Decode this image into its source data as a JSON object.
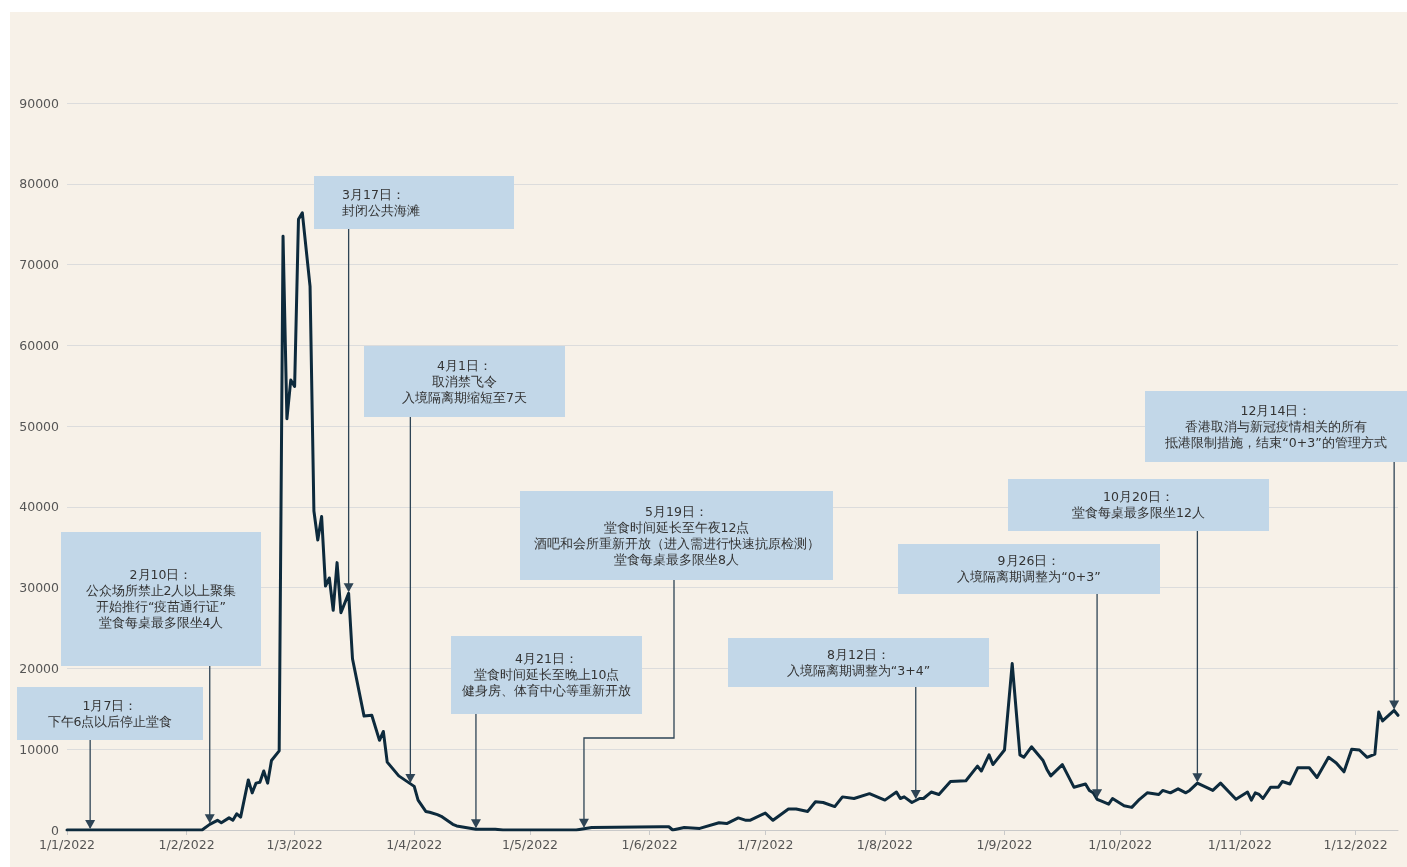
{
  "chart_data": {
    "type": "line",
    "x": [
      "2022-01-01",
      "2022-02-05",
      "2022-02-07",
      "2022-02-09",
      "2022-02-10",
      "2022-02-12",
      "2022-02-13",
      "2022-02-14",
      "2022-02-15",
      "2022-02-17",
      "2022-02-18",
      "2022-02-19",
      "2022-02-20",
      "2022-02-21",
      "2022-02-22",
      "2022-02-23",
      "2022-02-25",
      "2022-02-26",
      "2022-02-27",
      "2022-02-28",
      "2022-03-01",
      "2022-03-02",
      "2022-03-03",
      "2022-03-05",
      "2022-03-06",
      "2022-03-07",
      "2022-03-08",
      "2022-03-09",
      "2022-03-10",
      "2022-03-11",
      "2022-03-12",
      "2022-03-13",
      "2022-03-15",
      "2022-03-16",
      "2022-03-19",
      "2022-03-21",
      "2022-03-23",
      "2022-03-24",
      "2022-03-25",
      "2022-03-28",
      "2022-04-01",
      "2022-04-02",
      "2022-04-04",
      "2022-04-05",
      "2022-04-07",
      "2022-04-08",
      "2022-04-11",
      "2022-04-12",
      "2022-04-17",
      "2022-04-22",
      "2022-04-24",
      "2022-05-03",
      "2022-05-13",
      "2022-05-17",
      "2022-06-04",
      "2022-06-06",
      "2022-06-07",
      "2022-06-10",
      "2022-06-14",
      "2022-06-19",
      "2022-06-21",
      "2022-06-24",
      "2022-06-26",
      "2022-06-27",
      "2022-07-01",
      "2022-07-03",
      "2022-07-07",
      "2022-07-09",
      "2022-07-12",
      "2022-07-14",
      "2022-07-16",
      "2022-07-19",
      "2022-07-21",
      "2022-07-24",
      "2022-07-28",
      "2022-08-01",
      "2022-08-04",
      "2022-08-05",
      "2022-08-06",
      "2022-08-08",
      "2022-08-10",
      "2022-08-11",
      "2022-08-13",
      "2022-08-15",
      "2022-08-18",
      "2022-08-22",
      "2022-08-25",
      "2022-08-26",
      "2022-08-28",
      "2022-08-29",
      "2022-09-01",
      "2022-09-03",
      "2022-09-05",
      "2022-09-06",
      "2022-09-08",
      "2022-09-11",
      "2022-09-12",
      "2022-09-13",
      "2022-09-16",
      "2022-09-19",
      "2022-09-22",
      "2022-09-23",
      "2022-09-24",
      "2022-09-25",
      "2022-09-26",
      "2022-09-28",
      "2022-09-29",
      "2022-10-02",
      "2022-10-04",
      "2022-10-06",
      "2022-10-08",
      "2022-10-11",
      "2022-10-12",
      "2022-10-14",
      "2022-10-16",
      "2022-10-18",
      "2022-10-19",
      "2022-10-21",
      "2022-10-25",
      "2022-10-27",
      "2022-10-31",
      "2022-11-03",
      "2022-11-04",
      "2022-11-05",
      "2022-11-06",
      "2022-11-07",
      "2022-11-09",
      "2022-11-11",
      "2022-11-12",
      "2022-11-14",
      "2022-11-16",
      "2022-11-19",
      "2022-11-21",
      "2022-11-24",
      "2022-11-26",
      "2022-11-28",
      "2022-11-30",
      "2022-12-02",
      "2022-12-04",
      "2022-12-06",
      "2022-12-07",
      "2022-12-08",
      "2022-12-11",
      "2022-12-12"
    ],
    "series": [
      {
        "color": "#0d2a3c",
        "values": [
          0,
          0,
          700,
          1200,
          900,
          1500,
          1200,
          2000,
          1600,
          6200,
          4600,
          5800,
          5900,
          7300,
          5800,
          8600,
          9800,
          73500,
          50900,
          55700,
          54900,
          75600,
          76400,
          67300,
          39500,
          35900,
          38800,
          30200,
          31200,
          27200,
          33100,
          26900,
          29300,
          21200,
          14100,
          14200,
          11100,
          12200,
          8400,
          6700,
          5400,
          3700,
          2300,
          2200,
          1900,
          1700,
          700,
          500,
          100,
          100,
          0,
          0,
          0,
          300,
          400,
          400,
          0,
          300,
          200,
          900,
          800,
          1500,
          1200,
          1200,
          2100,
          1200,
          2600,
          2600,
          2300,
          3500,
          3400,
          2900,
          4100,
          3900,
          4500,
          3700,
          4700,
          3900,
          4100,
          3400,
          3900,
          3900,
          4700,
          4400,
          6000,
          6100,
          7900,
          7300,
          9300,
          8100,
          9900,
          20600,
          9300,
          9000,
          10300,
          8600,
          7500,
          6700,
          8100,
          5300,
          5700,
          4900,
          4600,
          3800,
          3600,
          3200,
          3900,
          3000,
          2800,
          3800,
          4600,
          4400,
          4900,
          4600,
          5100,
          4600,
          4900,
          5800,
          4900,
          5800,
          3800,
          4700,
          3700,
          4600,
          4400,
          3900,
          5300,
          5300,
          6000,
          5700,
          7700,
          7700,
          6500,
          9000,
          8300,
          7200,
          10000,
          9900,
          9000,
          9400,
          14600,
          13500,
          14800,
          14200
        ]
      }
    ],
    "xlim": [
      "2022-01-01",
      "2022-12-12"
    ],
    "xticks": [
      {
        "value": "2022-01-01",
        "label": "1/1/2022"
      },
      {
        "value": "2022-02-01",
        "label": "1/2/2022"
      },
      {
        "value": "2022-03-01",
        "label": "1/3/2022"
      },
      {
        "value": "2022-04-01",
        "label": "1/4/2022"
      },
      {
        "value": "2022-05-01",
        "label": "1/5/2022"
      },
      {
        "value": "2022-06-01",
        "label": "1/6/2022"
      },
      {
        "value": "2022-07-01",
        "label": "1/7/2022"
      },
      {
        "value": "2022-08-01",
        "label": "1/8/2022"
      },
      {
        "value": "2022-09-01",
        "label": "1/9/2022"
      },
      {
        "value": "2022-10-01",
        "label": "1/10/2022"
      },
      {
        "value": "2022-11-01",
        "label": "1/11/2022"
      },
      {
        "value": "2022-12-01",
        "label": "1/12/2022"
      }
    ],
    "ylim": [
      0,
      90000
    ],
    "yticks": [
      0,
      10000,
      20000,
      30000,
      40000,
      50000,
      60000,
      70000,
      80000,
      90000
    ],
    "grid": "y",
    "marker": "none",
    "line_style": "solid",
    "annotations": [
      {
        "text": "1月7日：下午6点以后停止堂食",
        "x": "2022-01-07",
        "y": 0
      },
      {
        "text": "2月10日：公众场所禁止2人以上聚集开始推行“疫苗通行证”堂食每桌最多限坐4人",
        "x": "2022-02-07",
        "y": 700
      },
      {
        "text": "3月17日：封闭公共海滩",
        "x": "2022-03-15",
        "y": 29300
      },
      {
        "text": "4月1日：取消禁飞令入境隔离期缩短至7天",
        "x": "2022-03-31",
        "y": 5700
      },
      {
        "text": "4月21日：堂食时间延长至晚上10点健身房、体育中心等重新开放",
        "x": "2022-04-17",
        "y": 100
      },
      {
        "text": "5月19日：堂食时间延长至午夜12点酒吧和会所重新开放（进入需进行快速抗原检测）堂食每桌最多限坐8人",
        "x": "2022-05-15",
        "y": 150
      },
      {
        "text": "8月12日：入境隔离期调整为“3+4”",
        "x": "2022-08-09",
        "y": 3700
      },
      {
        "text": "9月26日：入境隔离期调整为“0+3”",
        "x": "2022-09-25",
        "y": 3800
      },
      {
        "text": "10月20日：堂食每桌最多限坐12人",
        "x": "2022-10-21",
        "y": 5800
      },
      {
        "text": "12月14日：香港取消与新冠疫情相关的所有抵港限制措施，结束“0+3”的管理方式",
        "x": "2022-12-11",
        "y": 14800
      }
    ]
  }
}
